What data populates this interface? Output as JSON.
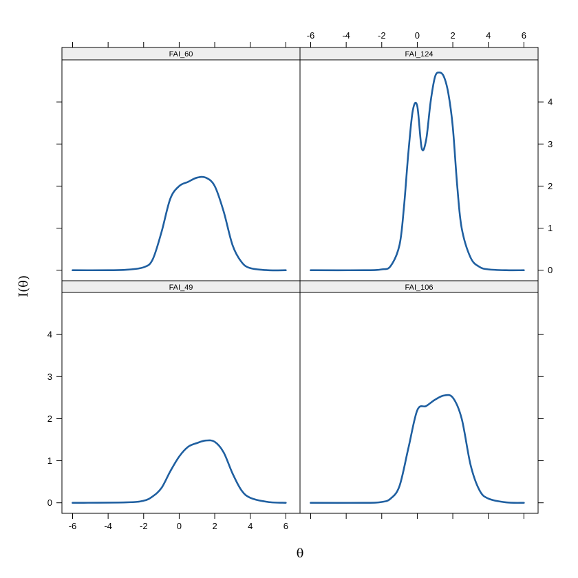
{
  "colors": {
    "curve": "#1f5fa0",
    "strip_fill": "#eeeeee",
    "frame": "#000000",
    "background": "#ffffff"
  },
  "chart_data": {
    "type": "line",
    "title": "",
    "xlabel": "θ",
    "ylabel": "I(θ)",
    "xlim": [
      -6.6,
      6.8
    ],
    "ylim": [
      -0.25,
      5.0
    ],
    "x_ticks": [
      -6,
      -4,
      -2,
      0,
      2,
      4,
      6
    ],
    "y_ticks": [
      0,
      1,
      2,
      3,
      4
    ],
    "grid": false,
    "legend": "none",
    "layout": "2x2",
    "panels": [
      {
        "strip": "FAI_60",
        "row": "top",
        "col": "left",
        "x": [
          -6,
          -4,
          -3,
          -2,
          -1.5,
          -1,
          -0.5,
          0,
          0.5,
          1,
          1.5,
          2,
          2.5,
          3,
          3.5,
          4,
          5,
          6
        ],
        "y": [
          0,
          0,
          0.01,
          0.07,
          0.25,
          0.9,
          1.7,
          2.0,
          2.1,
          2.2,
          2.2,
          2.0,
          1.4,
          0.6,
          0.2,
          0.05,
          0,
          0
        ]
      },
      {
        "strip": "FAI_124",
        "row": "top",
        "col": "right",
        "x": [
          -6,
          -3,
          -2,
          -1.5,
          -1,
          -0.75,
          -0.5,
          -0.25,
          0,
          0.25,
          0.5,
          0.75,
          1,
          1.25,
          1.5,
          1.75,
          2,
          2.25,
          2.5,
          3,
          3.5,
          4,
          5,
          6
        ],
        "y": [
          0,
          0,
          0.02,
          0.1,
          0.6,
          1.5,
          2.8,
          3.8,
          3.9,
          2.9,
          3.1,
          4.0,
          4.6,
          4.7,
          4.6,
          4.2,
          3.4,
          2.0,
          1.0,
          0.3,
          0.08,
          0.02,
          0,
          0
        ]
      },
      {
        "strip": "FAI_49",
        "row": "bottom",
        "col": "left",
        "x": [
          -6,
          -3,
          -2,
          -1.5,
          -1,
          -0.5,
          0,
          0.5,
          1,
          1.5,
          2,
          2.5,
          3,
          3.5,
          4,
          5,
          6
        ],
        "y": [
          0,
          0.01,
          0.05,
          0.15,
          0.35,
          0.75,
          1.1,
          1.33,
          1.42,
          1.48,
          1.45,
          1.2,
          0.7,
          0.3,
          0.12,
          0.02,
          0
        ]
      },
      {
        "strip": "FAI_106",
        "row": "bottom",
        "col": "right",
        "x": [
          -6,
          -3,
          -2,
          -1.5,
          -1,
          -0.5,
          0,
          0.5,
          1,
          1.5,
          2,
          2.5,
          3,
          3.5,
          4,
          5,
          6
        ],
        "y": [
          0,
          0,
          0.02,
          0.1,
          0.4,
          1.3,
          2.2,
          2.3,
          2.45,
          2.55,
          2.5,
          2.0,
          0.9,
          0.3,
          0.1,
          0.01,
          0
        ]
      }
    ]
  }
}
